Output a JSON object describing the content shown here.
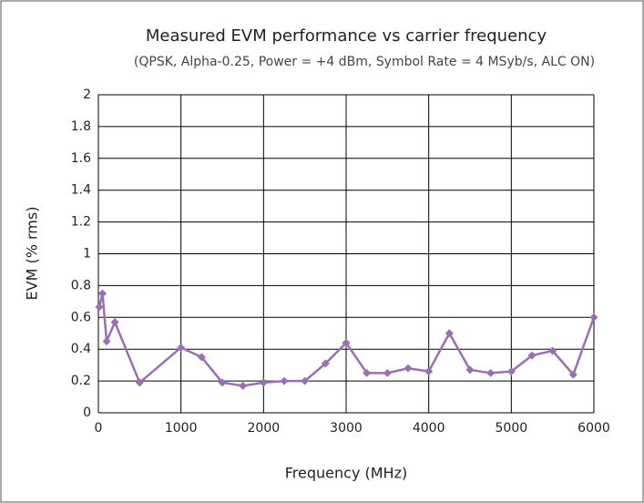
{
  "chart_data": {
    "type": "line",
    "title": "Measured EVM performance vs carrier frequency",
    "subtitle": "(QPSK, Alpha-0.25, Power = +4 dBm, Symbol Rate = 4 MSyb/s, ALC ON)",
    "x_label": "Frequency (MHz)",
    "y_label": "EVM (% rms)",
    "x": [
      10,
      50,
      100,
      200,
      500,
      1000,
      1250,
      1500,
      1750,
      2000,
      2250,
      2500,
      2750,
      3000,
      3250,
      3500,
      3750,
      4000,
      4250,
      4500,
      4750,
      5000,
      5250,
      5500,
      5750,
      6000
    ],
    "series": [
      {
        "name": "EVM",
        "color": "#9b6fb5",
        "values": [
          0.665,
          0.75,
          0.45,
          0.57,
          0.19,
          0.41,
          0.35,
          0.19,
          0.17,
          0.19,
          0.2,
          0.2,
          0.31,
          0.44,
          0.25,
          0.25,
          0.28,
          0.26,
          0.5,
          0.27,
          0.25,
          0.26,
          0.36,
          0.39,
          0.24,
          0.6
        ]
      }
    ],
    "xlim": [
      0,
      6000
    ],
    "xticks": [
      0,
      1000,
      2000,
      3000,
      4000,
      5000,
      6000
    ],
    "ylim": [
      0,
      2
    ],
    "yticks": [
      0,
      0.2,
      0.4,
      0.6,
      0.8,
      1,
      1.2,
      1.4,
      1.6,
      1.8,
      2
    ],
    "grid": true
  }
}
